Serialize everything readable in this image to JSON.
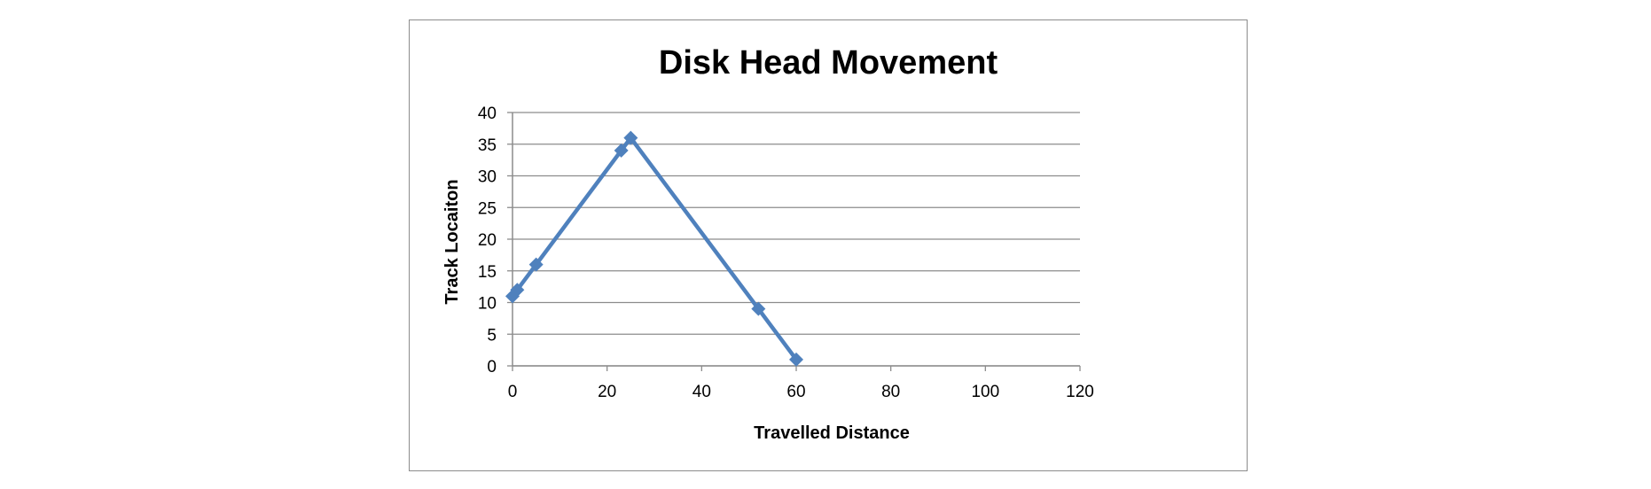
{
  "chart_data": {
    "type": "scatter",
    "title": "Disk Head Movement",
    "xlabel": "Travelled Distance",
    "ylabel": "Track Locaiton",
    "xlim": [
      0,
      120
    ],
    "ylim": [
      0,
      40
    ],
    "x_ticks": [
      0,
      20,
      40,
      60,
      80,
      100,
      120
    ],
    "y_ticks": [
      0,
      5,
      10,
      15,
      20,
      25,
      30,
      35,
      40
    ],
    "grid": "horizontal",
    "legend": "none",
    "color": "#4f81bd",
    "series": [
      {
        "points": [
          {
            "x": 0,
            "y": 11
          },
          {
            "x": 1,
            "y": 12
          },
          {
            "x": 5,
            "y": 16
          },
          {
            "x": 23,
            "y": 34
          },
          {
            "x": 25,
            "y": 36
          },
          {
            "x": 52,
            "y": 9
          },
          {
            "x": 60,
            "y": 1
          }
        ]
      }
    ]
  }
}
